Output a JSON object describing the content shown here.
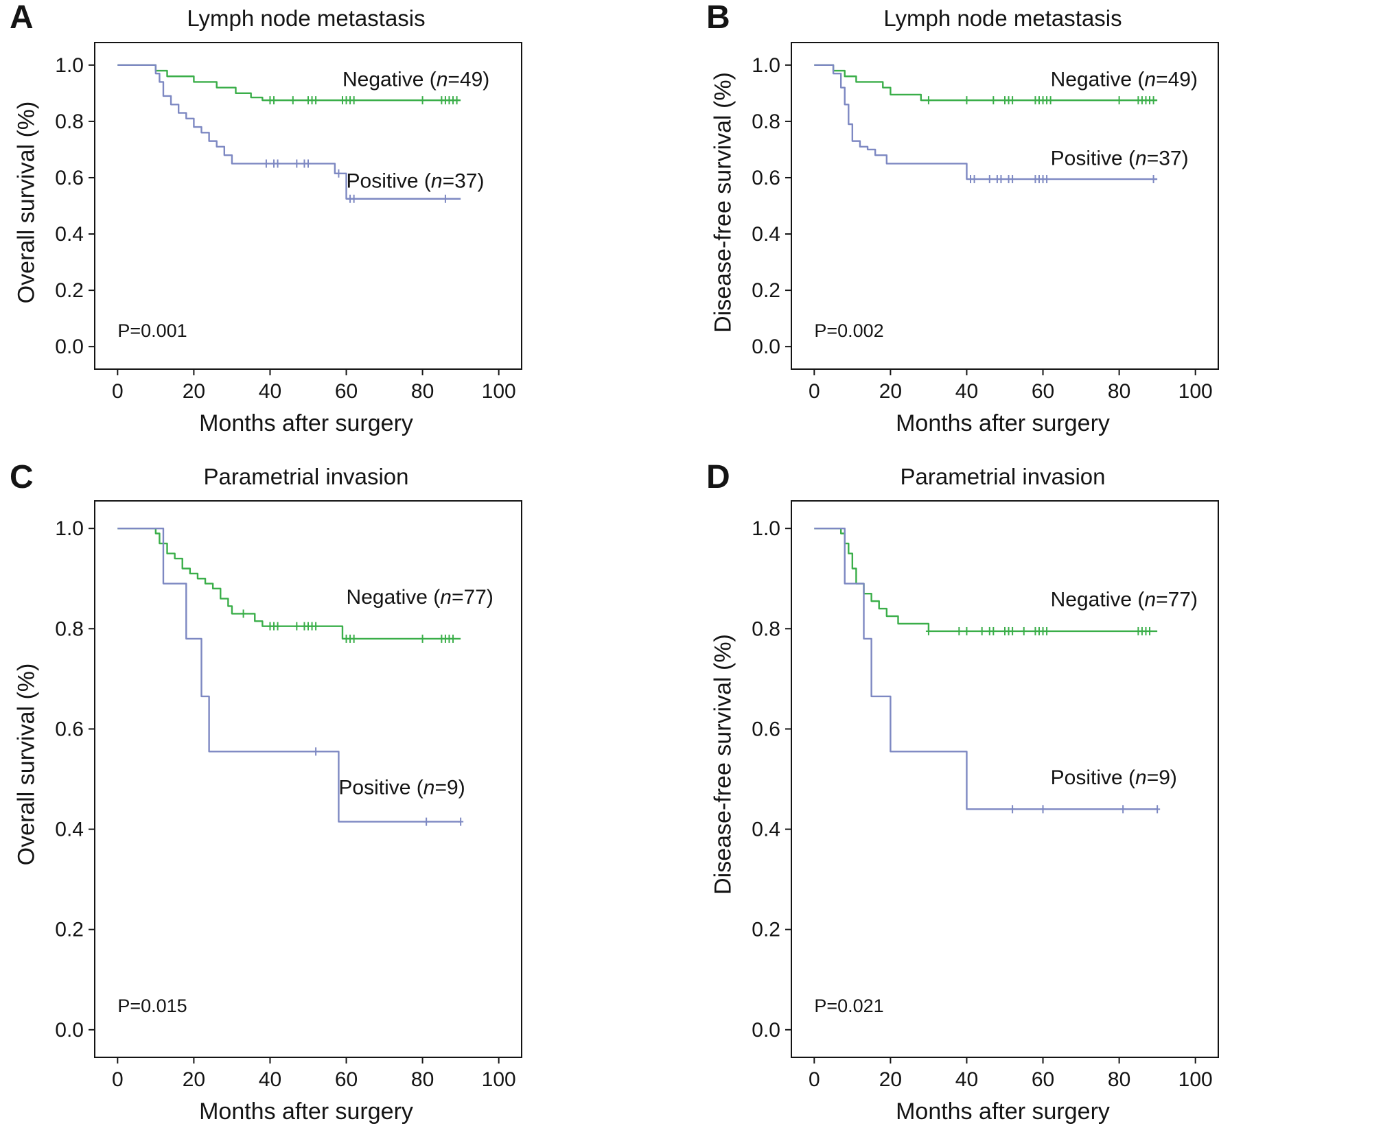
{
  "colors": {
    "negative": "#3aae49",
    "positive": "#7d88c2",
    "axis": "#141414",
    "text": "#141414",
    "background": "#ffffff"
  },
  "chart_data": [
    {
      "id": "A",
      "panel_label": "A",
      "type": "line",
      "subtype": "kaplan-meier-step",
      "title": "Lymph node metastasis",
      "xlabel": "Months after surgery",
      "ylabel": "Overall survival (%)",
      "p_value": "P=0.001",
      "p_pos": [
        0,
        0.035
      ],
      "xlim": [
        -6,
        106
      ],
      "ylim": [
        -0.08,
        1.08
      ],
      "grid": false,
      "legend_position": "inline-annotations",
      "xticks": [
        0,
        20,
        40,
        60,
        80,
        100
      ],
      "xtick_labels": [
        "0",
        "20",
        "40",
        "60",
        "80",
        "100"
      ],
      "ytick_values": [
        0.0,
        0.2,
        0.4,
        0.6,
        0.8,
        1.0
      ],
      "ytick_labels": [
        "0.0",
        "0.2",
        "0.4",
        "0.6",
        "0.8",
        "1.0"
      ],
      "series": [
        {
          "name": "Negative",
          "n": 49,
          "label": "Negative (n=49)",
          "label_parts": [
            "Negative (",
            "n",
            "=49)"
          ],
          "label_x": 59,
          "label_y": 0.925,
          "color_key": "negative",
          "steps": [
            [
              0,
              1.0
            ],
            [
              10,
              0.98
            ],
            [
              13,
              0.96
            ],
            [
              20,
              0.94
            ],
            [
              26,
              0.92
            ],
            [
              31,
              0.9
            ],
            [
              35,
              0.885
            ],
            [
              38,
              0.875
            ],
            [
              90,
              0.875
            ]
          ],
          "censors": [
            [
              40,
              0.875
            ],
            [
              41,
              0.875
            ],
            [
              46,
              0.875
            ],
            [
              50,
              0.875
            ],
            [
              51,
              0.875
            ],
            [
              52,
              0.875
            ],
            [
              59,
              0.875
            ],
            [
              60,
              0.875
            ],
            [
              61,
              0.875
            ],
            [
              62,
              0.875
            ],
            [
              80,
              0.875
            ],
            [
              85,
              0.875
            ],
            [
              86,
              0.875
            ],
            [
              87,
              0.875
            ],
            [
              88,
              0.875
            ],
            [
              89,
              0.875
            ]
          ]
        },
        {
          "name": "Positive",
          "n": 37,
          "label": "Positive (n=37)",
          "label_parts": [
            "Positive (",
            "n",
            "=37)"
          ],
          "label_x": 60,
          "label_y": 0.565,
          "color_key": "positive",
          "steps": [
            [
              0,
              1.0
            ],
            [
              10,
              0.97
            ],
            [
              11,
              0.94
            ],
            [
              12,
              0.89
            ],
            [
              14,
              0.86
            ],
            [
              16,
              0.83
            ],
            [
              18,
              0.81
            ],
            [
              20,
              0.78
            ],
            [
              22,
              0.76
            ],
            [
              24,
              0.73
            ],
            [
              26,
              0.71
            ],
            [
              28,
              0.68
            ],
            [
              30,
              0.65
            ],
            [
              57,
              0.615
            ],
            [
              60,
              0.525
            ],
            [
              90,
              0.525
            ]
          ],
          "censors": [
            [
              39,
              0.65
            ],
            [
              41,
              0.65
            ],
            [
              42,
              0.65
            ],
            [
              47,
              0.65
            ],
            [
              49,
              0.65
            ],
            [
              50,
              0.65
            ],
            [
              58,
              0.615
            ],
            [
              61,
              0.525
            ],
            [
              62,
              0.525
            ],
            [
              86,
              0.525
            ]
          ]
        }
      ]
    },
    {
      "id": "B",
      "panel_label": "B",
      "type": "line",
      "subtype": "kaplan-meier-step",
      "title": "Lymph node metastasis",
      "xlabel": "Months after surgery",
      "ylabel": "Disease-free survival (%)",
      "p_value": "P=0.002",
      "p_pos": [
        0,
        0.035
      ],
      "xlim": [
        -6,
        106
      ],
      "ylim": [
        -0.08,
        1.08
      ],
      "grid": false,
      "legend_position": "inline-annotations",
      "xticks": [
        0,
        20,
        40,
        60,
        80,
        100
      ],
      "xtick_labels": [
        "0",
        "20",
        "40",
        "60",
        "80",
        "100"
      ],
      "ytick_values": [
        0.0,
        0.2,
        0.4,
        0.6,
        0.8,
        1.0
      ],
      "ytick_labels": [
        "0.0",
        "0.2",
        "0.4",
        "0.6",
        "0.8",
        "1.0"
      ],
      "series": [
        {
          "name": "Negative",
          "n": 49,
          "label": "Negative (n=49)",
          "label_parts": [
            "Negative (",
            "n",
            "=49)"
          ],
          "label_x": 62,
          "label_y": 0.925,
          "color_key": "negative",
          "steps": [
            [
              0,
              1.0
            ],
            [
              5,
              0.98
            ],
            [
              8,
              0.96
            ],
            [
              11,
              0.94
            ],
            [
              18,
              0.92
            ],
            [
              20,
              0.895
            ],
            [
              28,
              0.875
            ],
            [
              90,
              0.875
            ]
          ],
          "censors": [
            [
              30,
              0.875
            ],
            [
              40,
              0.875
            ],
            [
              47,
              0.875
            ],
            [
              50,
              0.875
            ],
            [
              51,
              0.875
            ],
            [
              52,
              0.875
            ],
            [
              58,
              0.875
            ],
            [
              59,
              0.875
            ],
            [
              60,
              0.875
            ],
            [
              61,
              0.875
            ],
            [
              62,
              0.875
            ],
            [
              80,
              0.875
            ],
            [
              85,
              0.875
            ],
            [
              86,
              0.875
            ],
            [
              87,
              0.875
            ],
            [
              88,
              0.875
            ],
            [
              89,
              0.875
            ]
          ]
        },
        {
          "name": "Positive",
          "n": 37,
          "label": "Positive (n=37)",
          "label_parts": [
            "Positive (",
            "n",
            "=37)"
          ],
          "label_x": 62,
          "label_y": 0.645,
          "color_key": "positive",
          "steps": [
            [
              0,
              1.0
            ],
            [
              5,
              0.97
            ],
            [
              7,
              0.92
            ],
            [
              8,
              0.86
            ],
            [
              9,
              0.79
            ],
            [
              10,
              0.73
            ],
            [
              12,
              0.71
            ],
            [
              14,
              0.7
            ],
            [
              16,
              0.68
            ],
            [
              19,
              0.65
            ],
            [
              40,
              0.595
            ],
            [
              90,
              0.595
            ]
          ],
          "censors": [
            [
              41,
              0.595
            ],
            [
              42,
              0.595
            ],
            [
              46,
              0.595
            ],
            [
              48,
              0.595
            ],
            [
              49,
              0.595
            ],
            [
              51,
              0.595
            ],
            [
              52,
              0.595
            ],
            [
              58,
              0.595
            ],
            [
              59,
              0.595
            ],
            [
              60,
              0.595
            ],
            [
              61,
              0.595
            ],
            [
              89,
              0.595
            ]
          ]
        }
      ]
    },
    {
      "id": "C",
      "panel_label": "C",
      "type": "line",
      "subtype": "kaplan-meier-step",
      "title": "Parametrial invasion",
      "xlabel": "Months after surgery",
      "ylabel": "Overall survival (%)",
      "p_value": "P=0.015",
      "p_pos": [
        0,
        0.035
      ],
      "xlim": [
        -6,
        106
      ],
      "ylim": [
        -0.055,
        1.055
      ],
      "grid": false,
      "legend_position": "inline-annotations",
      "xticks": [
        0,
        20,
        40,
        60,
        80,
        100
      ],
      "xtick_labels": [
        "0",
        "20",
        "40",
        "60",
        "80",
        "100"
      ],
      "ytick_values": [
        0.0,
        0.2,
        0.4,
        0.6,
        0.8,
        1.0
      ],
      "ytick_labels": [
        "0.0",
        "0.2",
        "0.4",
        "0.6",
        "0.8",
        "1.0"
      ],
      "series": [
        {
          "name": "Negative",
          "n": 77,
          "label": "Negative (n=77)",
          "label_parts": [
            "Negative (",
            "n",
            "=77)"
          ],
          "label_x": 60,
          "label_y": 0.85,
          "color_key": "negative",
          "steps": [
            [
              0,
              1.0
            ],
            [
              10,
              0.99
            ],
            [
              11,
              0.97
            ],
            [
              13,
              0.95
            ],
            [
              15,
              0.94
            ],
            [
              17,
              0.92
            ],
            [
              19,
              0.91
            ],
            [
              21,
              0.9
            ],
            [
              23,
              0.89
            ],
            [
              25,
              0.88
            ],
            [
              27,
              0.86
            ],
            [
              29,
              0.845
            ],
            [
              30,
              0.83
            ],
            [
              36,
              0.815
            ],
            [
              38,
              0.805
            ],
            [
              59,
              0.78
            ],
            [
              90,
              0.78
            ]
          ],
          "censors": [
            [
              33,
              0.83
            ],
            [
              40,
              0.805
            ],
            [
              41,
              0.805
            ],
            [
              42,
              0.805
            ],
            [
              47,
              0.805
            ],
            [
              49,
              0.805
            ],
            [
              50,
              0.805
            ],
            [
              51,
              0.805
            ],
            [
              52,
              0.805
            ],
            [
              60,
              0.78
            ],
            [
              61,
              0.78
            ],
            [
              62,
              0.78
            ],
            [
              80,
              0.78
            ],
            [
              85,
              0.78
            ],
            [
              86,
              0.78
            ],
            [
              87,
              0.78
            ],
            [
              88,
              0.78
            ]
          ]
        },
        {
          "name": "Positive",
          "n": 9,
          "label": "Positive (n=9)",
          "label_parts": [
            "Positive (",
            "n",
            "=9)"
          ],
          "label_x": 58,
          "label_y": 0.47,
          "color_key": "positive",
          "steps": [
            [
              0,
              1.0
            ],
            [
              12,
              0.89
            ],
            [
              18,
              0.78
            ],
            [
              22,
              0.665
            ],
            [
              24,
              0.555
            ],
            [
              58,
              0.415
            ],
            [
              90,
              0.415
            ]
          ],
          "censors": [
            [
              52,
              0.555
            ],
            [
              81,
              0.415
            ],
            [
              90,
              0.415
            ]
          ]
        }
      ]
    },
    {
      "id": "D",
      "panel_label": "D",
      "type": "line",
      "subtype": "kaplan-meier-step",
      "title": "Parametrial invasion",
      "xlabel": "Months after surgery",
      "ylabel": "Disease-free survival (%)",
      "p_value": "P=0.021",
      "p_pos": [
        0,
        0.035
      ],
      "xlim": [
        -6,
        106
      ],
      "ylim": [
        -0.055,
        1.055
      ],
      "grid": false,
      "legend_position": "inline-annotations",
      "xticks": [
        0,
        20,
        40,
        60,
        80,
        100
      ],
      "xtick_labels": [
        "0",
        "20",
        "40",
        "60",
        "80",
        "100"
      ],
      "ytick_values": [
        0.0,
        0.2,
        0.4,
        0.6,
        0.8,
        1.0
      ],
      "ytick_labels": [
        "0.0",
        "0.2",
        "0.4",
        "0.6",
        "0.8",
        "1.0"
      ],
      "series": [
        {
          "name": "Negative",
          "n": 77,
          "label": "Negative (n=77)",
          "label_parts": [
            "Negative (",
            "n",
            "=77)"
          ],
          "label_x": 62,
          "label_y": 0.845,
          "color_key": "negative",
          "steps": [
            [
              0,
              1.0
            ],
            [
              7,
              0.99
            ],
            [
              8,
              0.97
            ],
            [
              9,
              0.95
            ],
            [
              10,
              0.92
            ],
            [
              11,
              0.89
            ],
            [
              13,
              0.87
            ],
            [
              15,
              0.855
            ],
            [
              17,
              0.84
            ],
            [
              19,
              0.825
            ],
            [
              22,
              0.81
            ],
            [
              30,
              0.795
            ],
            [
              90,
              0.795
            ]
          ],
          "censors": [
            [
              30,
              0.795
            ],
            [
              38,
              0.795
            ],
            [
              40,
              0.795
            ],
            [
              44,
              0.795
            ],
            [
              46,
              0.795
            ],
            [
              47,
              0.795
            ],
            [
              50,
              0.795
            ],
            [
              51,
              0.795
            ],
            [
              52,
              0.795
            ],
            [
              55,
              0.795
            ],
            [
              58,
              0.795
            ],
            [
              59,
              0.795
            ],
            [
              60,
              0.795
            ],
            [
              61,
              0.795
            ],
            [
              85,
              0.795
            ],
            [
              86,
              0.795
            ],
            [
              87,
              0.795
            ],
            [
              88,
              0.795
            ]
          ]
        },
        {
          "name": "Positive",
          "n": 9,
          "label": "Positive (n=9)",
          "label_parts": [
            "Positive (",
            "n",
            "=9)"
          ],
          "label_x": 62,
          "label_y": 0.49,
          "color_key": "positive",
          "steps": [
            [
              0,
              1.0
            ],
            [
              8,
              0.89
            ],
            [
              13,
              0.78
            ],
            [
              15,
              0.665
            ],
            [
              20,
              0.555
            ],
            [
              40,
              0.44
            ],
            [
              90,
              0.44
            ]
          ],
          "censors": [
            [
              52,
              0.44
            ],
            [
              60,
              0.44
            ],
            [
              81,
              0.44
            ],
            [
              90,
              0.44
            ]
          ]
        }
      ]
    }
  ]
}
